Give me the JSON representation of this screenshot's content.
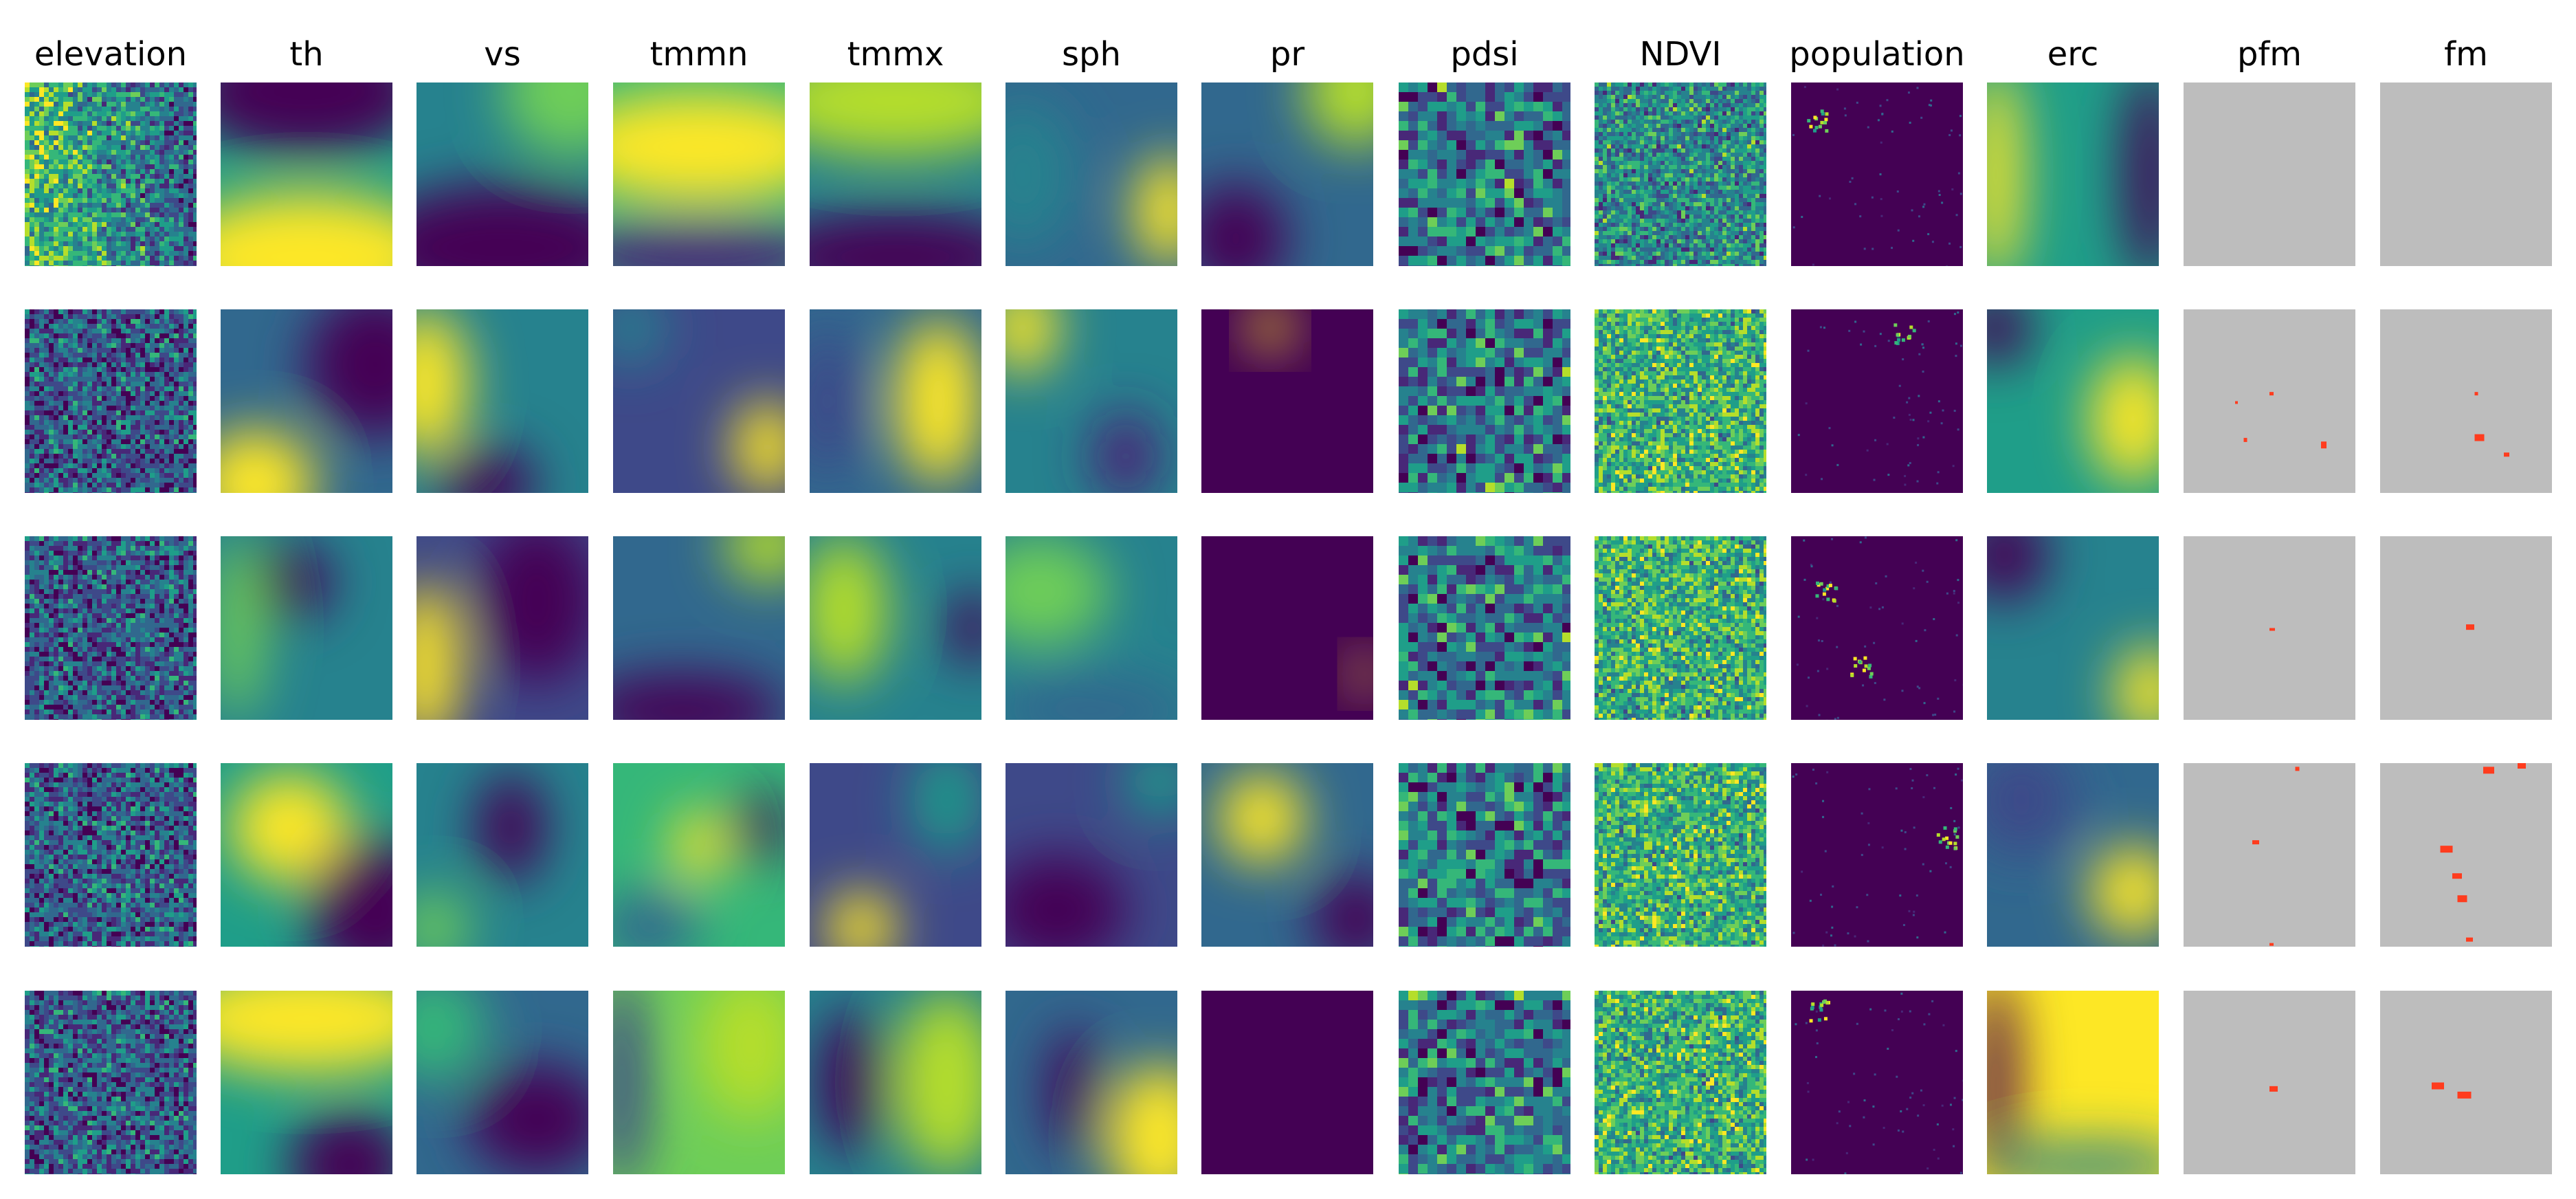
{
  "figure": {
    "columns": [
      {
        "key": "elevation",
        "label": "elevation"
      },
      {
        "key": "th",
        "label": "th"
      },
      {
        "key": "vs",
        "label": "vs"
      },
      {
        "key": "tmmn",
        "label": "tmmn"
      },
      {
        "key": "tmmx",
        "label": "tmmx"
      },
      {
        "key": "sph",
        "label": "sph"
      },
      {
        "key": "pr",
        "label": "pr"
      },
      {
        "key": "pdsi",
        "label": "pdsi"
      },
      {
        "key": "NDVI",
        "label": "NDVI"
      },
      {
        "key": "population",
        "label": "population"
      },
      {
        "key": "erc",
        "label": "erc"
      },
      {
        "key": "pfm",
        "label": "pfm"
      },
      {
        "key": "fm",
        "label": "fm"
      }
    ],
    "row_count": 5,
    "colormap": "viridis",
    "mask_background_color": "#bdbdbd",
    "fire_color": "#ff3c1e"
  }
}
